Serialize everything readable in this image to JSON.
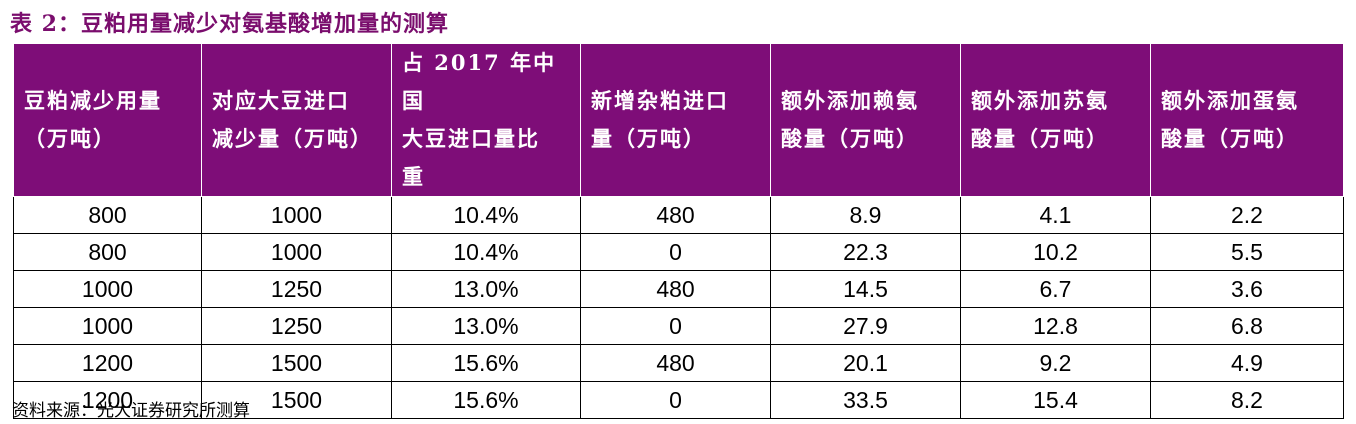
{
  "title": "表 2：豆粕用量减少对氨基酸增加量的测算",
  "headers": [
    [
      "豆粕减少用量",
      "（万吨）"
    ],
    [
      "对应大豆进口",
      "减少量（万吨）"
    ],
    [
      "占 2017 年中国",
      "大豆进口量比",
      "重"
    ],
    [
      "新增杂粕进口",
      "量（万吨）"
    ],
    [
      "额外添加赖氨",
      "酸量（万吨）"
    ],
    [
      "额外添加苏氨",
      "酸量（万吨）"
    ],
    [
      "额外添加蛋氨",
      "酸量（万吨）"
    ]
  ],
  "rows": [
    [
      "800",
      "1000",
      "10.4%",
      "480",
      "8.9",
      "4.1",
      "2.2"
    ],
    [
      "800",
      "1000",
      "10.4%",
      "0",
      "22.3",
      "10.2",
      "5.5"
    ],
    [
      "1000",
      "1250",
      "13.0%",
      "480",
      "14.5",
      "6.7",
      "3.6"
    ],
    [
      "1000",
      "1250",
      "13.0%",
      "0",
      "27.9",
      "12.8",
      "6.8"
    ],
    [
      "1200",
      "1500",
      "15.6%",
      "480",
      "20.1",
      "9.2",
      "4.9"
    ],
    [
      "1200",
      "1500",
      "15.6%",
      "0",
      "33.5",
      "15.4",
      "8.2"
    ]
  ],
  "source": "资料来源：光大证券研究所测算",
  "colors": {
    "header_bg": "#7e0d78",
    "title": "#7a0d6d"
  }
}
